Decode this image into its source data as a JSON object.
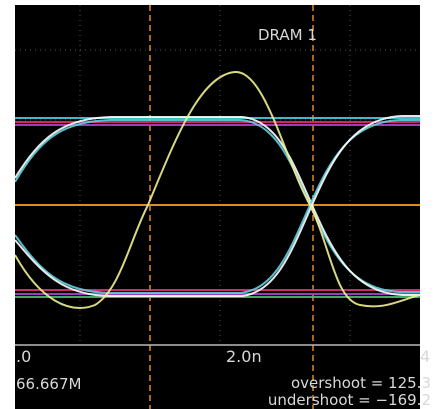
{
  "screen": {
    "title": "DRAM 1",
    "x_axis_labels": [
      ".0",
      "2.0n",
      "4"
    ],
    "rate": "66.667M",
    "overshoot": "overshoot  =  125.3",
    "undershoot": "undershoot  =  −169.2"
  }
}
